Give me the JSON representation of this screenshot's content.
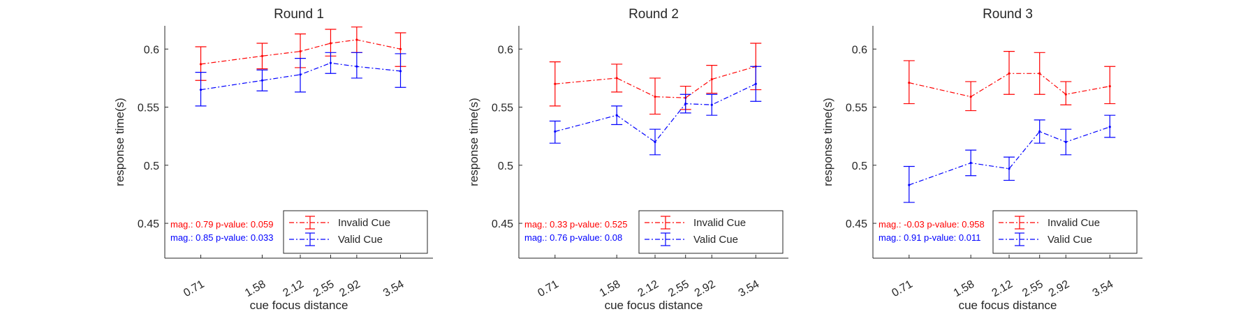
{
  "chart_data": [
    {
      "type": "line",
      "title": "Round 1",
      "xlabel": "cue focus distance",
      "ylabel": "response time(s)",
      "x": [
        0.71,
        1.58,
        2.12,
        2.55,
        2.92,
        3.54
      ],
      "xtick_labels": [
        "0.71",
        "1.58",
        "2.12",
        "2.55",
        "2.92",
        "3.54"
      ],
      "xlim": [
        0.2,
        4.0
      ],
      "ylim": [
        0.42,
        0.62
      ],
      "yticks": [
        0.45,
        0.5,
        0.55,
        0.6
      ],
      "ytick_labels": [
        "0.45",
        "0.5",
        "0.55",
        "0.6"
      ],
      "legend_position": "bottom-right",
      "series": [
        {
          "name": "Invalid Cue",
          "color": "#ff0000",
          "values": [
            0.587,
            0.594,
            0.598,
            0.605,
            0.608,
            0.6
          ],
          "err_low": [
            0.573,
            0.583,
            0.584,
            0.594,
            0.597,
            0.585
          ],
          "err_high": [
            0.602,
            0.605,
            0.613,
            0.617,
            0.619,
            0.614
          ]
        },
        {
          "name": "Valid Cue",
          "color": "#0000ff",
          "values": [
            0.565,
            0.573,
            0.578,
            0.588,
            0.585,
            0.581
          ],
          "err_low": [
            0.551,
            0.564,
            0.563,
            0.579,
            0.575,
            0.567
          ],
          "err_high": [
            0.58,
            0.582,
            0.592,
            0.597,
            0.597,
            0.596
          ]
        }
      ],
      "annotations": [
        {
          "text": "mag.: 0.79 p-value: 0.059",
          "color": "#ff0000"
        },
        {
          "text": "mag.: 0.85 p-value: 0.033",
          "color": "#0000ff"
        }
      ]
    },
    {
      "type": "line",
      "title": "Round 2",
      "xlabel": "cue focus distance",
      "ylabel": "response time(s)",
      "x": [
        0.71,
        1.58,
        2.12,
        2.55,
        2.92,
        3.54
      ],
      "xtick_labels": [
        "0.71",
        "1.58",
        "2.12",
        "2.55",
        "2.92",
        "3.54"
      ],
      "xlim": [
        0.2,
        4.0
      ],
      "ylim": [
        0.42,
        0.62
      ],
      "yticks": [
        0.45,
        0.5,
        0.55,
        0.6
      ],
      "ytick_labels": [
        "0.45",
        "0.5",
        "0.55",
        "0.6"
      ],
      "legend_position": "bottom-right",
      "series": [
        {
          "name": "Invalid Cue",
          "color": "#ff0000",
          "values": [
            0.57,
            0.575,
            0.559,
            0.558,
            0.574,
            0.585
          ],
          "err_low": [
            0.551,
            0.563,
            0.544,
            0.548,
            0.562,
            0.565
          ],
          "err_high": [
            0.589,
            0.587,
            0.575,
            0.568,
            0.586,
            0.605
          ]
        },
        {
          "name": "Valid Cue",
          "color": "#0000ff",
          "values": [
            0.529,
            0.543,
            0.52,
            0.553,
            0.552,
            0.57
          ],
          "err_low": [
            0.519,
            0.535,
            0.509,
            0.545,
            0.543,
            0.555
          ],
          "err_high": [
            0.538,
            0.551,
            0.531,
            0.561,
            0.561,
            0.585
          ]
        }
      ],
      "annotations": [
        {
          "text": "mag.: 0.33 p-value: 0.525",
          "color": "#ff0000"
        },
        {
          "text": "mag.: 0.76 p-value: 0.08",
          "color": "#0000ff"
        }
      ]
    },
    {
      "type": "line",
      "title": "Round 3",
      "xlabel": "cue focus distance",
      "ylabel": "response time(s)",
      "x": [
        0.71,
        1.58,
        2.12,
        2.55,
        2.92,
        3.54
      ],
      "xtick_labels": [
        "0.71",
        "1.58",
        "2.12",
        "2.55",
        "2.92",
        "3.54"
      ],
      "xlim": [
        0.2,
        4.0
      ],
      "ylim": [
        0.42,
        0.62
      ],
      "yticks": [
        0.45,
        0.5,
        0.55,
        0.6
      ],
      "ytick_labels": [
        "0.45",
        "0.5",
        "0.55",
        "0.6"
      ],
      "legend_position": "bottom-right",
      "series": [
        {
          "name": "Invalid Cue",
          "color": "#ff0000",
          "values": [
            0.571,
            0.559,
            0.579,
            0.579,
            0.561,
            0.568
          ],
          "err_low": [
            0.553,
            0.547,
            0.561,
            0.561,
            0.552,
            0.553
          ],
          "err_high": [
            0.59,
            0.572,
            0.598,
            0.597,
            0.572,
            0.585
          ]
        },
        {
          "name": "Valid Cue",
          "color": "#0000ff",
          "values": [
            0.483,
            0.502,
            0.497,
            0.529,
            0.52,
            0.533
          ],
          "err_low": [
            0.468,
            0.491,
            0.487,
            0.519,
            0.509,
            0.524
          ],
          "err_high": [
            0.499,
            0.513,
            0.507,
            0.539,
            0.531,
            0.543
          ]
        }
      ],
      "annotations": [
        {
          "text": "mag.: -0.03 p-value: 0.958",
          "color": "#ff0000"
        },
        {
          "text": "mag.: 0.91 p-value: 0.011",
          "color": "#0000ff"
        }
      ]
    }
  ]
}
